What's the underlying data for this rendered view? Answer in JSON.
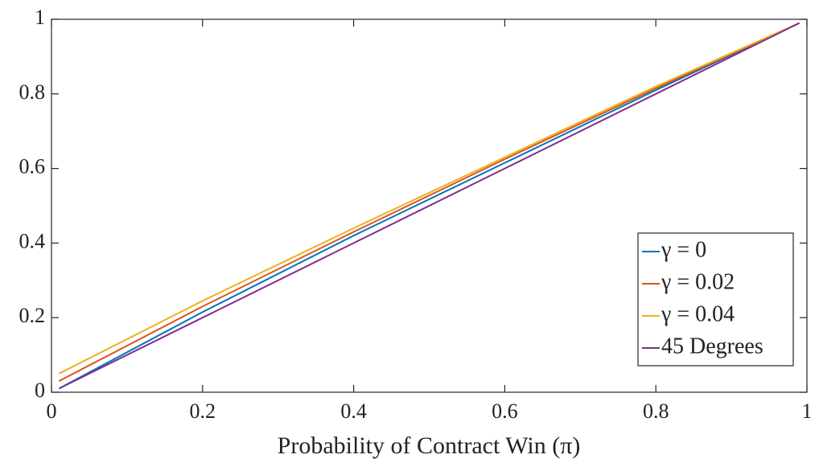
{
  "chart_data": {
    "type": "line",
    "xlabel": "Probability of Contract Win (π)",
    "x": [
      0.01,
      0.2,
      0.4,
      0.6,
      0.8,
      0.99
    ],
    "series": [
      {
        "name": "γ = 0",
        "color": "#0072bd",
        "values": [
          0.01,
          0.215,
          0.42,
          0.615,
          0.81,
          0.99
        ]
      },
      {
        "name": "γ = 0.02",
        "color": "#d95319",
        "values": [
          0.03,
          0.23,
          0.43,
          0.625,
          0.815,
          0.99
        ]
      },
      {
        "name": "γ = 0.04",
        "color": "#edb120",
        "values": [
          0.05,
          0.245,
          0.44,
          0.63,
          0.82,
          0.99
        ]
      },
      {
        "name": "45 Degrees",
        "color": "#7e2f8e",
        "values": [
          0.01,
          0.2,
          0.4,
          0.6,
          0.8,
          0.99
        ]
      }
    ],
    "xlim": [
      0,
      1
    ],
    "xticks": [
      0,
      0.2,
      0.4,
      0.6,
      0.8,
      1
    ],
    "ylim": [
      0,
      1
    ],
    "yticks": [
      0,
      0.2,
      0.4,
      0.6,
      0.8,
      1
    ],
    "legend": "lower right"
  }
}
